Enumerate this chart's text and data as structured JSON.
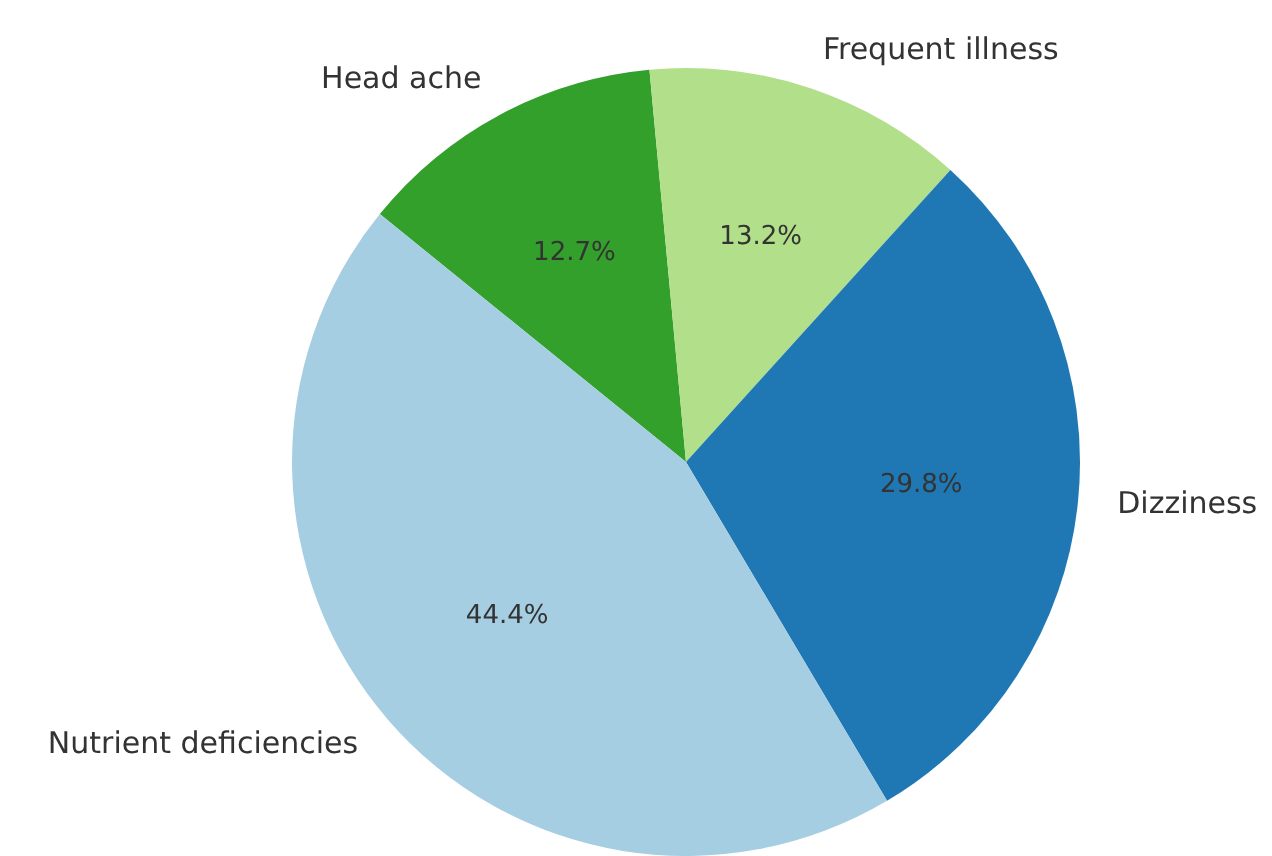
{
  "chart_data": {
    "type": "pie",
    "categories": [
      "Head ache",
      "Frequent illness",
      "Dizziness",
      "Nutrient deficiencies"
    ],
    "values": [
      12.7,
      13.2,
      29.8,
      44.4
    ],
    "colors": [
      "#33a02c",
      "#b2df8a",
      "#1f78b4",
      "#a6cee3"
    ],
    "value_labels": [
      "12.7%",
      "13.2%",
      "29.8%",
      "44.4%"
    ],
    "legend": false
  }
}
